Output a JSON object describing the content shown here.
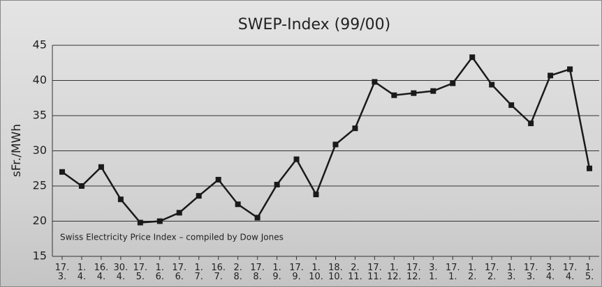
{
  "chart_data": {
    "type": "line",
    "title": "SWEP-Index (99/00)",
    "y_label": "sFr./MWh",
    "annotation": "Swiss Electricity Price Index  – compiled by Dow Jones",
    "categories": [
      "17.\n3.",
      "1.\n4.",
      "16.\n4.",
      "30.\n4.",
      "17.\n5.",
      "1.\n6.",
      "17.\n6.",
      "1.\n7.",
      "16.\n7.",
      "2.\n8.",
      "17.\n8.",
      "1.\n9.",
      "17.\n9.",
      "1.\n10.",
      "18.\n10.",
      "2.\n11.",
      "17.\n11.",
      "1.\n12.",
      "17.\n12.",
      "3.\n1.",
      "17.\n1.",
      "1.\n2.",
      "17.\n2.",
      "1.\n3.",
      "17.\n3.",
      "3.\n4.",
      "17.\n4.",
      "1.\n5."
    ],
    "series": [
      {
        "color": "#1a1a1a",
        "values": [
          27,
          25,
          27.7,
          23.1,
          19.8,
          20,
          21.2,
          23.6,
          25.9,
          22.4,
          20.5,
          25.2,
          28.8,
          23.8,
          30.9,
          33.2,
          39.8,
          37.9,
          38.2,
          38.5,
          39.6,
          43.3,
          39.4,
          36.5,
          33.9,
          40.7,
          41.6,
          27.5
        ]
      }
    ],
    "ylim": [
      15,
      45
    ],
    "yticks": [
      15,
      20,
      25,
      30,
      35,
      40,
      45
    ],
    "grid": true
  }
}
